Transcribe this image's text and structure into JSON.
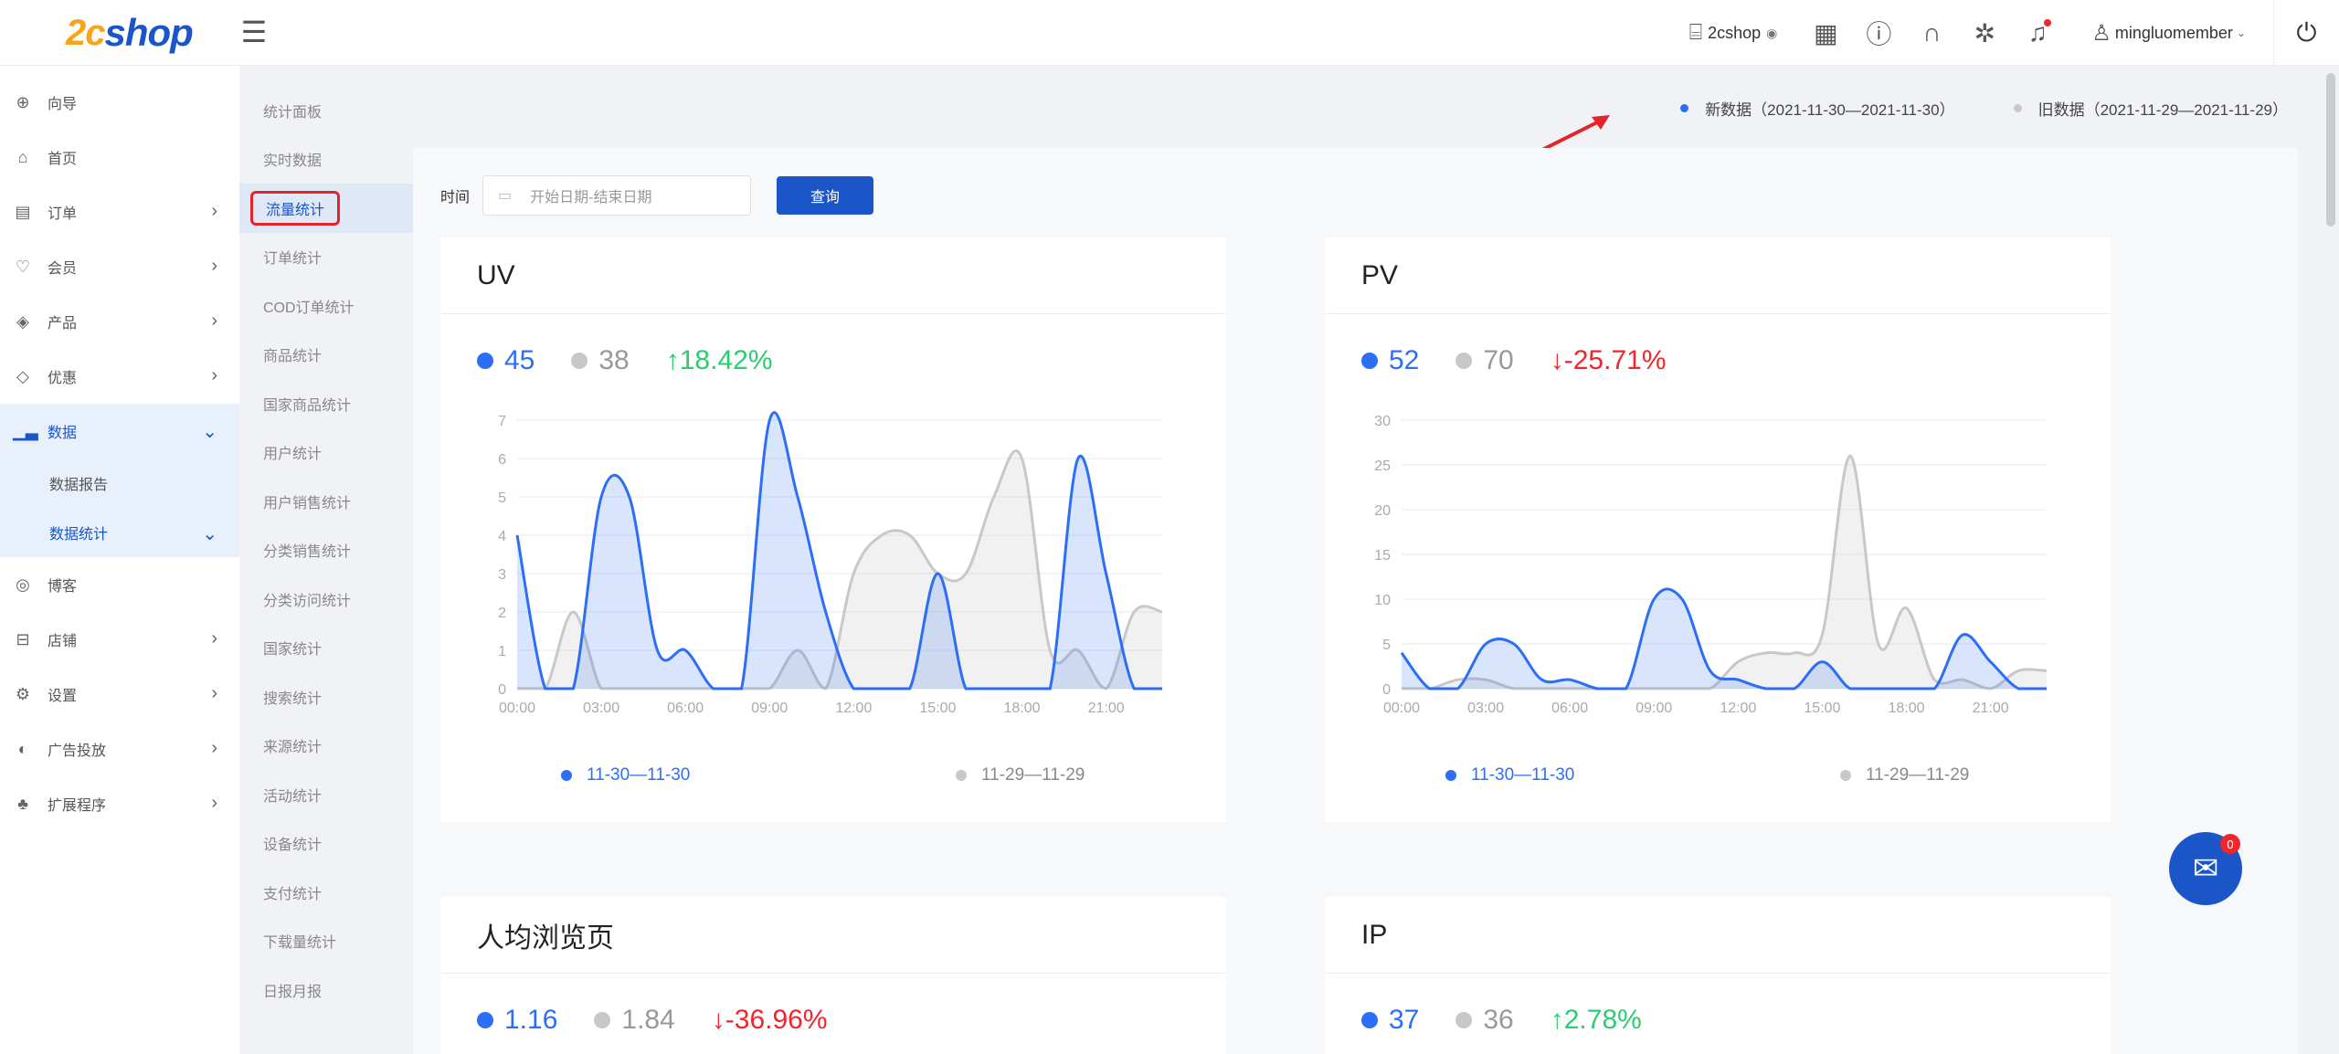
{
  "header": {
    "logo_num": "2c",
    "logo_word": "shop",
    "store_name": "2cshop",
    "user_name": "mingluomember",
    "icons": [
      "qr-icon",
      "help-icon",
      "headset-icon",
      "gear-sparkle-icon",
      "bell-icon",
      "power-icon"
    ]
  },
  "sidebar": {
    "items": [
      {
        "label": "向导",
        "icon": "guide-icon",
        "chevron": false
      },
      {
        "label": "首页",
        "icon": "home-icon",
        "chevron": false
      },
      {
        "label": "订单",
        "icon": "order-icon",
        "chevron": true
      },
      {
        "label": "会员",
        "icon": "member-icon",
        "chevron": true
      },
      {
        "label": "产品",
        "icon": "product-icon",
        "chevron": true
      },
      {
        "label": "优惠",
        "icon": "coupon-icon",
        "chevron": true
      },
      {
        "label": "数据",
        "icon": "chart-icon",
        "chevron": true
      }
    ],
    "data_sub": [
      "数据报告",
      "数据统计"
    ],
    "items_after": [
      {
        "label": "博客",
        "icon": "blog-icon"
      },
      {
        "label": "店铺",
        "icon": "store-icon"
      },
      {
        "label": "设置",
        "icon": "settings-icon"
      },
      {
        "label": "广告投放",
        "icon": "ads-icon"
      },
      {
        "label": "扩展程序",
        "icon": "extension-icon"
      }
    ]
  },
  "subnav": {
    "items": [
      "统计面板",
      "实时数据",
      "流量统计",
      "订单统计",
      "COD订单统计",
      "商品统计",
      "国家商品统计",
      "用户统计",
      "用户销售统计",
      "分类销售统计",
      "分类访问统计",
      "国家统计",
      "搜索统计",
      "来源统计",
      "活动统计",
      "设备统计",
      "支付统计",
      "下载量统计",
      "日报月报"
    ],
    "active_index": 2
  },
  "legend_top": {
    "new_label": "新数据（2021-11-30—2021-11-30）",
    "old_label": "旧数据（2021-11-29—2021-11-29）",
    "new_color": "#2c6ef5",
    "old_color": "#c8c8c8"
  },
  "filter": {
    "label": "时间",
    "placeholder": "开始日期-结束日期",
    "button": "查询"
  },
  "cards": {
    "uv": {
      "title": "UV",
      "cur": "45",
      "prev": "38",
      "change": "18.42%",
      "arrow": "↑"
    },
    "pv": {
      "title": "PV",
      "cur": "52",
      "prev": "70",
      "change": "-25.71%",
      "arrow": "↓"
    },
    "avg": {
      "title": "人均浏览页",
      "cur": "1.16",
      "prev": "1.84",
      "change": "-36.96%",
      "arrow": "↓"
    },
    "ip": {
      "title": "IP",
      "cur": "37",
      "prev": "36",
      "change": "2.78%",
      "arrow": "↑"
    }
  },
  "chart_legend": {
    "cur": "11-30—11-30",
    "prev": "11-29—11-29"
  },
  "chart_data": [
    {
      "type": "area",
      "x": [
        "00:00",
        "01:00",
        "02:00",
        "03:00",
        "04:00",
        "05:00",
        "06:00",
        "07:00",
        "08:00",
        "09:00",
        "10:00",
        "11:00",
        "12:00",
        "13:00",
        "14:00",
        "15:00",
        "16:00",
        "17:00",
        "18:00",
        "19:00",
        "20:00",
        "21:00",
        "22:00",
        "23:00"
      ],
      "xticks": [
        "00:00",
        "03:00",
        "06:00",
        "09:00",
        "12:00",
        "15:00",
        "18:00",
        "21:00"
      ],
      "ylim": [
        0,
        7
      ],
      "yticks": [
        0,
        1,
        2,
        3,
        4,
        5,
        6,
        7
      ],
      "series": [
        {
          "name": "11-30—11-30",
          "values": [
            4,
            0,
            0,
            5,
            5,
            1,
            1,
            0,
            0,
            7,
            5,
            2,
            0,
            0,
            0,
            3,
            0,
            0,
            0,
            0,
            6,
            3,
            0,
            0
          ]
        },
        {
          "name": "11-29—11-29",
          "values": [
            0,
            0,
            2,
            0,
            0,
            0,
            0,
            0,
            0,
            0,
            1,
            0,
            3,
            4,
            4,
            3,
            3,
            5,
            6,
            1,
            1,
            0,
            2,
            2
          ]
        }
      ]
    },
    {
      "type": "area",
      "x": [
        "00:00",
        "01:00",
        "02:00",
        "03:00",
        "04:00",
        "05:00",
        "06:00",
        "07:00",
        "08:00",
        "09:00",
        "10:00",
        "11:00",
        "12:00",
        "13:00",
        "14:00",
        "15:00",
        "16:00",
        "17:00",
        "18:00",
        "19:00",
        "20:00",
        "21:00",
        "22:00",
        "23:00"
      ],
      "xticks": [
        "00:00",
        "03:00",
        "06:00",
        "09:00",
        "12:00",
        "15:00",
        "18:00",
        "21:00"
      ],
      "ylim": [
        0,
        30
      ],
      "yticks": [
        0,
        5,
        10,
        15,
        20,
        25,
        30
      ],
      "series": [
        {
          "name": "11-30—11-30",
          "values": [
            4,
            0,
            0,
            5,
            5,
            1,
            1,
            0,
            0,
            10,
            10,
            2,
            1,
            0,
            0,
            3,
            0,
            0,
            0,
            0,
            6,
            3,
            0,
            0
          ]
        },
        {
          "name": "11-29—11-29",
          "values": [
            0,
            0,
            1,
            1,
            0,
            0,
            0,
            0,
            0,
            0,
            0,
            0,
            3,
            4,
            4,
            6,
            26,
            5,
            9,
            1,
            1,
            0,
            2,
            2
          ]
        }
      ]
    }
  ],
  "fab": {
    "badge": "0"
  }
}
